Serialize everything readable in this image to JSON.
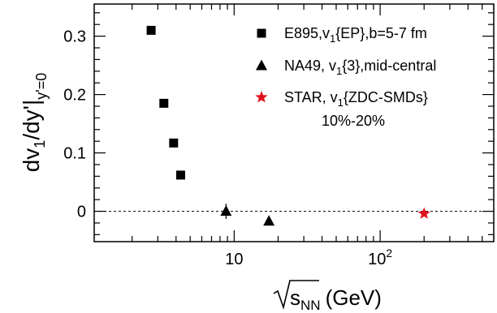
{
  "chart_data": {
    "type": "scatter",
    "xscale": "log",
    "xlim": [
      1.1,
      600
    ],
    "ylim": [
      -0.052,
      0.355
    ],
    "grid": false,
    "ylabel": {
      "main": "dv",
      "sub1": "1",
      "mid": "/dy'|",
      "sub2": "y'=0"
    },
    "xlabel": {
      "radical_var": "s",
      "radical_sub": "NN",
      "unit": "(GeV)"
    },
    "yticks": [
      {
        "value": 0,
        "label": "0"
      },
      {
        "value": 0.1,
        "label": "0.1"
      },
      {
        "value": 0.2,
        "label": "0.2"
      },
      {
        "value": 0.3,
        "label": "0.3"
      }
    ],
    "xticks": [
      {
        "value": 10,
        "base": "10",
        "exp": ""
      },
      {
        "value": 100,
        "base": "10",
        "exp": "2"
      }
    ],
    "reference_line": {
      "y": 0,
      "style": "dashed"
    },
    "legend_position": "top-right",
    "series": [
      {
        "key": "e895",
        "marker": "square",
        "color": "#000000",
        "legend": {
          "pre": "E895,v",
          "sub": "1",
          "post": "{EP},b=5-7 fm",
          "line2": ""
        },
        "points": [
          {
            "x": 2.7,
            "y": 0.31
          },
          {
            "x": 3.3,
            "y": 0.185
          },
          {
            "x": 3.85,
            "y": 0.117
          },
          {
            "x": 4.3,
            "y": 0.062
          }
        ]
      },
      {
        "key": "na49",
        "marker": "triangle",
        "color": "#000000",
        "legend": {
          "pre": "NA49, v",
          "sub": "1",
          "post": "{3},mid-central",
          "line2": ""
        },
        "points": [
          {
            "x": 8.8,
            "y": 0.0,
            "err": 0.013
          },
          {
            "x": 17.3,
            "y": -0.017,
            "err": 0.003
          }
        ]
      },
      {
        "key": "star",
        "marker": "star",
        "color": "#e0141e",
        "legend": {
          "pre": "STAR, v",
          "sub": "1",
          "post": "{ZDC-SMDs}",
          "line2": "10%-20%"
        },
        "points": [
          {
            "x": 200,
            "y": -0.004,
            "err": 0.002
          }
        ]
      }
    ]
  }
}
